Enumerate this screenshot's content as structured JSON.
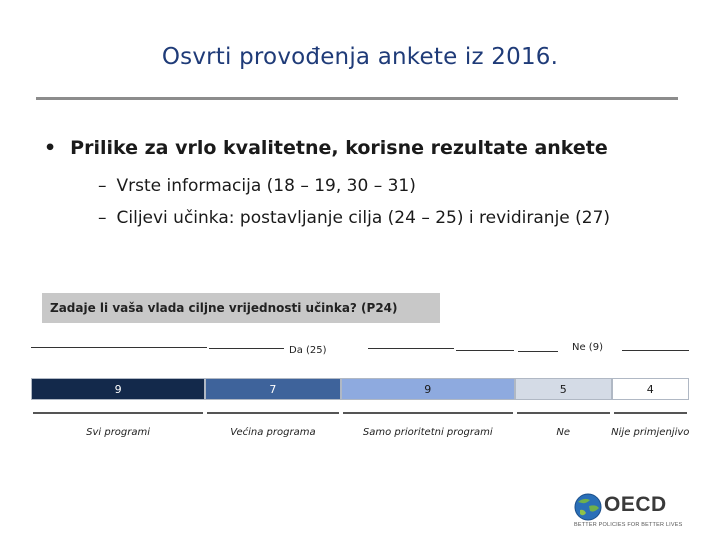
{
  "slide": {
    "title": "Osvrti provođenja ankete iz 2016.",
    "bullet_main": "Prilike za vrlo kvalitetne, korisne rezultate ankete",
    "bullet_char": "•",
    "dash_char": "–",
    "sub_bullets": [
      "Vrste informacija (18 – 19, 30 – 31)",
      "Ciljevi učinka: postavljanje cilja (24 – 25) i revidiranje (27)"
    ]
  },
  "chart": {
    "question": "Zadaje li vaša vlada ciljne vrijednosti učinka? (P24)",
    "groups": {
      "yes": "Da (25)",
      "no": "Ne (9)"
    }
  },
  "chart_data": {
    "type": "bar",
    "orientation": "horizontal-stacked",
    "title": "Zadaje li vaša vlada ciljne vrijednosti učinka? (P24)",
    "categories": [
      "Svi programi",
      "Većina programa",
      "Samo prioritetni programi",
      "Ne",
      "Nije primjenjivo"
    ],
    "values": [
      9,
      7,
      9,
      5,
      4
    ],
    "groups": [
      {
        "name": "Da (25)",
        "categories": [
          "Svi programi",
          "Većina programa",
          "Samo prioritetni programi"
        ]
      },
      {
        "name": "Ne (9)",
        "categories": [
          "Ne",
          "Nije primjenjivo"
        ]
      }
    ],
    "colors": [
      "#13294b",
      "#3e639b",
      "#8eaadf",
      "#d4dbe6",
      "#ffffff"
    ],
    "text_colors": [
      "#ffffff",
      "#ffffff",
      "#1a1a1a",
      "#1a1a1a",
      "#1a1a1a"
    ]
  },
  "logo": {
    "word": "OECD",
    "tagline": "BETTER POLICIES FOR BETTER LIVES"
  }
}
